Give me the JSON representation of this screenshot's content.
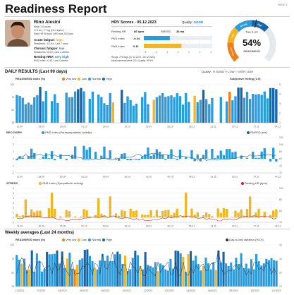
{
  "header": {
    "title": "Readiness Report",
    "page": "PAGE 1"
  },
  "profile": {
    "name": "Rino Alesini",
    "line1": "Male | 51 years",
    "line2": "174 cm | 77 kg (25.4 kg/m²)",
    "line3": "Rest HR 58 bpm | HR max 200 bpm",
    "acute_label": "Acute fatigue:",
    "acute_value": "high",
    "acute_sub": "Readiness -15.4%, Last 7 days",
    "chronic_label": "Chronic fatigue:",
    "chronic_value": "low",
    "chronic_sub": "Readiness +8.6%, Last 4 weeks",
    "hrv_label": "Resting HRV:",
    "hrv_value": "very high",
    "hrv_sub": "PNS index +0.43, Last 4 weeks"
  },
  "hrv_scores": {
    "title": "HRV Scores - 05.12.2023",
    "quality_label": "Quality:",
    "quality_value": "GOOD",
    "resting_hr_label": "Resting HR",
    "resting_hr_value": "66 bpm",
    "rmssd_label": "RMSSD",
    "rmssd_value": "33 ms",
    "pns_label": "PNS index",
    "pns_value": "-0.34",
    "sns_label": "SNS index",
    "sns_value": "0.11",
    "pns_fill": 0.38,
    "sns_fill": 0.55,
    "scale": [
      "-3",
      "-2",
      "-1",
      "0",
      "1",
      "2",
      "3"
    ],
    "range_line": "Range: 729 days (07.12.2021 - 05.12.2023)",
    "meas_line": "Measurements/week: 5.5 | Quality: 99.5%"
  },
  "gauge": {
    "date": "Tue 5.12",
    "value": "54%",
    "label": "READINESS",
    "fraction": 0.54,
    "band_labels": [
      "Very low",
      "Low",
      "Normal",
      "High"
    ]
  },
  "daily": {
    "title": "DAILY RESULTS (Last 90 days)",
    "quality_legend": {
      "label": "Quality:",
      "items": [
        "GOOD",
        "LOW",
        "VERY LOW"
      ]
    },
    "readiness": {
      "label": "READINESS index (%)",
      "legend": [
        "Very low",
        "Low",
        "Normal",
        "High"
      ],
      "right_label": "Subjective feeling (1-5)",
      "left_ticks": [
        "100",
        "75",
        "50",
        "25"
      ],
      "right_ticks": [
        "5",
        "4",
        "3",
        "2",
        "1"
      ]
    },
    "recovery": {
      "label": "RECOVERY",
      "legend": "PNS index (Parasympathetic activity)",
      "right_label": "RMSSD (ms)",
      "left_ticks": [
        "3",
        "2",
        "1",
        "0",
        "-1",
        "-2"
      ],
      "right_ticks": [
        "120",
        "100",
        "80",
        "60",
        "40",
        "20"
      ]
    },
    "stress": {
      "label": "STRESS",
      "legend": "SNS index (Sympathetic activity)",
      "right_label": "Resting HR (bpm)",
      "left_ticks": [
        "6",
        "5",
        "4",
        "3",
        "2",
        "1",
        "0",
        "-1"
      ],
      "right_ticks": [
        "100",
        "80",
        "60",
        "40"
      ]
    },
    "dates": [
      "11.09",
      "18.09",
      "25.09",
      "02.10",
      "09.10",
      "16.10",
      "23.10",
      "30.10",
      "06.11",
      "13.11",
      "20.11",
      "27.11",
      "04.12"
    ]
  },
  "weekly": {
    "title": "Weekly averages (Last 24 months)",
    "label": "READINESS index (%)",
    "legend": [
      "Very low",
      "Low",
      "Normal",
      "High"
    ],
    "right_label": "Day-to-day variation (%CV)",
    "left_ticks": [
      "100",
      "75",
      "50",
      "25"
    ],
    "right_ticks": [
      "40",
      "30",
      "20",
      "10"
    ],
    "dates": [
      "12/2021",
      "02/2022",
      "04/2022",
      "06/2022",
      "08/2022",
      "10/2022",
      "12/2022",
      "02/2023",
      "04/2023",
      "06/2023",
      "08/2023",
      "10/2023",
      "12/2023"
    ]
  },
  "colors": {
    "high": "#1565a8",
    "normal": "#2a9bdc",
    "low": "#f2b622",
    "very_low": "#f07f1a",
    "accent": "#1b84c7",
    "curve": "#1b5f98",
    "hr_curve": "#c9252f"
  }
}
